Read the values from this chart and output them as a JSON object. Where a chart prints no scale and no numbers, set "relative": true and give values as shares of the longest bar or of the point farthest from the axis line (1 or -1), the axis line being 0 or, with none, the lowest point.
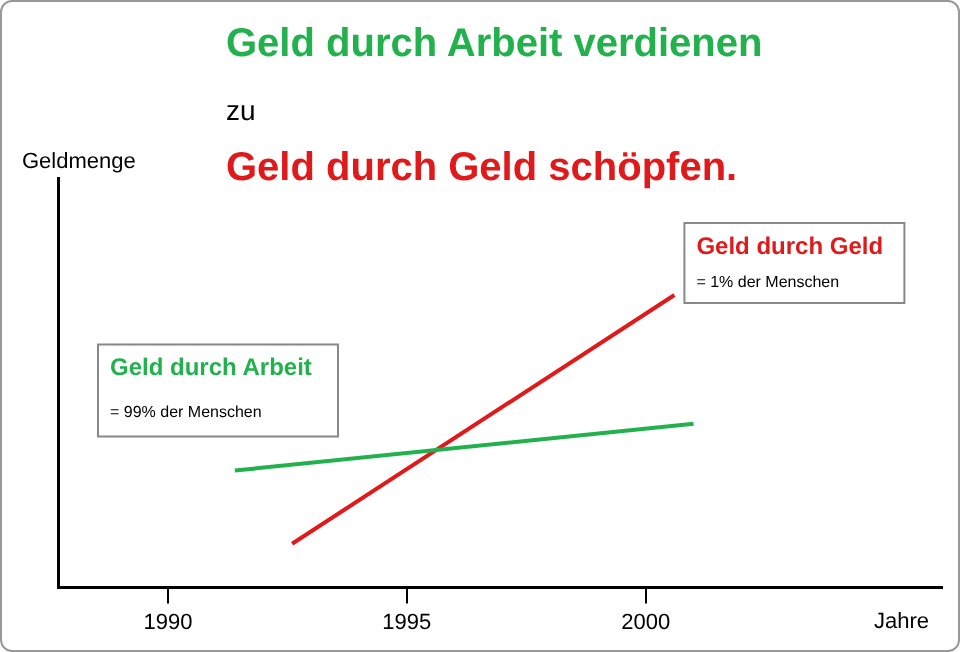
{
  "chart_data": {
    "type": "line",
    "title": "Geld durch Arbeit verdienen",
    "subtitle": "zu\nGeld durch Geld schöpfen.",
    "xlabel": "Jahre",
    "relative": true,
    "xlim": [
      1987.7,
      2006.2
    ],
    "xticks": [
      1990,
      1995,
      2000
    ],
    "grid": false,
    "legend": false,
    "marker": "none",
    "line_style": "solid",
    "series": [
      {
        "name": "Geld durch Arbeit",
        "color": "#22b14c",
        "x": [
          1991.4,
          2001.0
        ],
        "values": [
          0.4,
          0.56
        ]
      },
      {
        "name": "Geld durch Geld",
        "color": "#e0191b",
        "x": [
          1992.6,
          2000.6
        ],
        "values": [
          0.15,
          1.0
        ]
      }
    ],
    "annotations": [
      "= 99% der Menschen",
      "= 1% der Menschen",
      "Geldmenge"
    ]
  }
}
